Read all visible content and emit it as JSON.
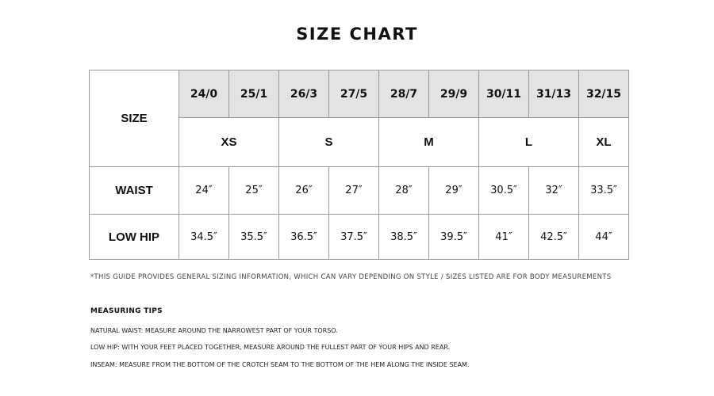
{
  "title": "SIZE CHART",
  "table": {
    "size_label": "SIZE",
    "numeric_sizes": [
      "24/0",
      "25/1",
      "26/3",
      "27/5",
      "28/7",
      "29/9",
      "30/11",
      "31/13",
      "32/15"
    ],
    "letter_sizes": [
      {
        "label": "XS",
        "span": 2
      },
      {
        "label": "S",
        "span": 2
      },
      {
        "label": "M",
        "span": 2
      },
      {
        "label": "L",
        "span": 2
      },
      {
        "label": "XL",
        "span": 1
      }
    ],
    "rows": [
      {
        "label": "WAIST",
        "values": [
          "24″",
          "25″",
          "26″",
          "27″",
          "28″",
          "29″",
          "30.5″",
          "32″",
          "33.5″"
        ]
      },
      {
        "label": "LOW HIP",
        "values": [
          "34.5″",
          "35.5″",
          "36.5″",
          "37.5″",
          "38.5″",
          "39.5″",
          "41″",
          "42.5″",
          "44″"
        ]
      }
    ],
    "header_bg": "#e3e3e3"
  },
  "note": "*THIS GUIDE PROVIDES GENERAL SIZING INFORMATION, WHICH CAN VARY DEPENDING ON STYLE / SIZES LISTED ARE FOR BODY MEASUREMENTS",
  "tips": {
    "heading": "MEASURING TIPS",
    "items": [
      "NATURAL WAIST: MEASURE AROUND THE NARROWEST PART OF YOUR TORSO.",
      "LOW HIP: WITH YOUR FEET PLACED TOGETHER, MEASURE AROUND THE FULLEST PART OF YOUR HIPS AND REAR.",
      "INSEAM: MEASURE FROM THE BOTTOM OF THE CROTCH SEAM TO THE BOTTOM OF THE HEM ALONG THE INSIDE SEAM."
    ]
  }
}
